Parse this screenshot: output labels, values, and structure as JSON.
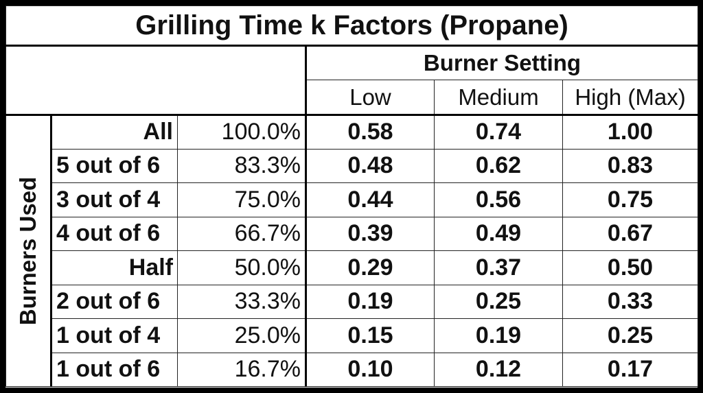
{
  "title": "Grilling Time k Factors (Propane)",
  "column_group": "Burner Setting",
  "row_group": "Burners Used",
  "levels": [
    "Low",
    "Medium",
    "High (Max)"
  ],
  "rows": [
    {
      "label": "All",
      "align": "right",
      "percent": "100.0%",
      "values": [
        "0.58",
        "0.74",
        "1.00"
      ]
    },
    {
      "label": "5 out of 6",
      "align": "left",
      "percent": "83.3%",
      "values": [
        "0.48",
        "0.62",
        "0.83"
      ]
    },
    {
      "label": "3 out of 4",
      "align": "left",
      "percent": "75.0%",
      "values": [
        "0.44",
        "0.56",
        "0.75"
      ]
    },
    {
      "label": "4 out of 6",
      "align": "left",
      "percent": "66.7%",
      "values": [
        "0.39",
        "0.49",
        "0.67"
      ]
    },
    {
      "label": "Half",
      "align": "right",
      "percent": "50.0%",
      "values": [
        "0.29",
        "0.37",
        "0.50"
      ]
    },
    {
      "label": "2 out of 6",
      "align": "left",
      "percent": "33.3%",
      "values": [
        "0.19",
        "0.25",
        "0.33"
      ]
    },
    {
      "label": "1 out of 4",
      "align": "left",
      "percent": "25.0%",
      "values": [
        "0.15",
        "0.19",
        "0.25"
      ]
    },
    {
      "label": "1 out of 6",
      "align": "left",
      "percent": "16.7%",
      "values": [
        "0.10",
        "0.12",
        "0.17"
      ]
    }
  ]
}
